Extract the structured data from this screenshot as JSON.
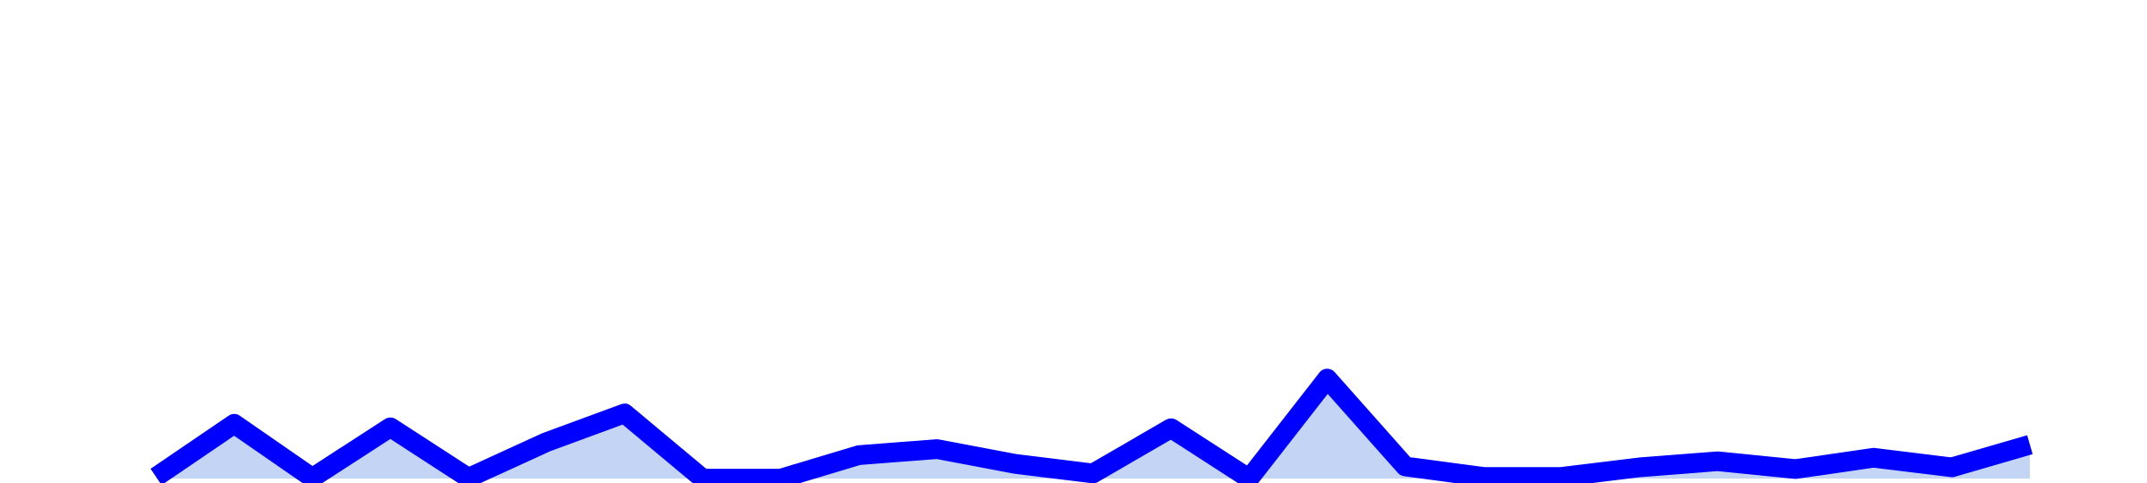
{
  "chart_data": {
    "type": "area",
    "x": [
      0,
      1,
      2,
      3,
      4,
      5,
      6,
      7,
      8,
      9,
      10,
      11,
      12,
      13,
      14,
      15,
      16,
      17,
      18,
      19,
      20,
      21,
      22,
      23,
      24
    ],
    "series": [
      {
        "values": [
          0.2,
          6.3,
          0.1,
          5.9,
          0.1,
          4.2,
          7.5,
          0.0,
          0.0,
          2.7,
          3.4,
          1.7,
          0.6,
          5.8,
          0.0,
          11.5,
          1.4,
          0.2,
          0.2,
          1.3,
          2.0,
          1.1,
          2.4,
          1.3,
          3.9
        ]
      }
    ],
    "xlim": [
      -2,
      25.5
    ],
    "ylim": [
      -0.5,
      55
    ],
    "grid": false,
    "legend": "none",
    "colors": {
      "line": "#0000ff",
      "fill": "#c3d4f4"
    }
  }
}
